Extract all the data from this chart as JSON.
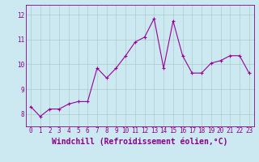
{
  "x": [
    0,
    1,
    2,
    3,
    4,
    5,
    6,
    7,
    8,
    9,
    10,
    11,
    12,
    13,
    14,
    15,
    16,
    17,
    18,
    19,
    20,
    21,
    22,
    23
  ],
  "y": [
    8.3,
    7.9,
    8.2,
    8.2,
    8.4,
    8.5,
    8.5,
    9.85,
    9.45,
    9.85,
    10.35,
    10.9,
    11.1,
    11.85,
    9.85,
    11.75,
    10.35,
    9.65,
    9.65,
    10.05,
    10.15,
    10.35,
    10.35,
    9.65
  ],
  "line_color": "#990099",
  "marker": "+",
  "marker_size": 3,
  "bg_color": "#cce8f0",
  "grid_color": "#aacccc",
  "xlabel": "Windchill (Refroidissement éolien,°C)",
  "ylim": [
    7.5,
    12.4
  ],
  "xlim": [
    -0.5,
    23.5
  ],
  "yticks": [
    8,
    9,
    10,
    11,
    12
  ],
  "xticks": [
    0,
    1,
    2,
    3,
    4,
    5,
    6,
    7,
    8,
    9,
    10,
    11,
    12,
    13,
    14,
    15,
    16,
    17,
    18,
    19,
    20,
    21,
    22,
    23
  ],
  "tick_fontsize": 5.5,
  "label_fontsize": 7,
  "label_color": "#880088",
  "tick_color": "#880088",
  "spine_color": "#880088",
  "linewidth": 0.8,
  "markeredgewidth": 0.8
}
